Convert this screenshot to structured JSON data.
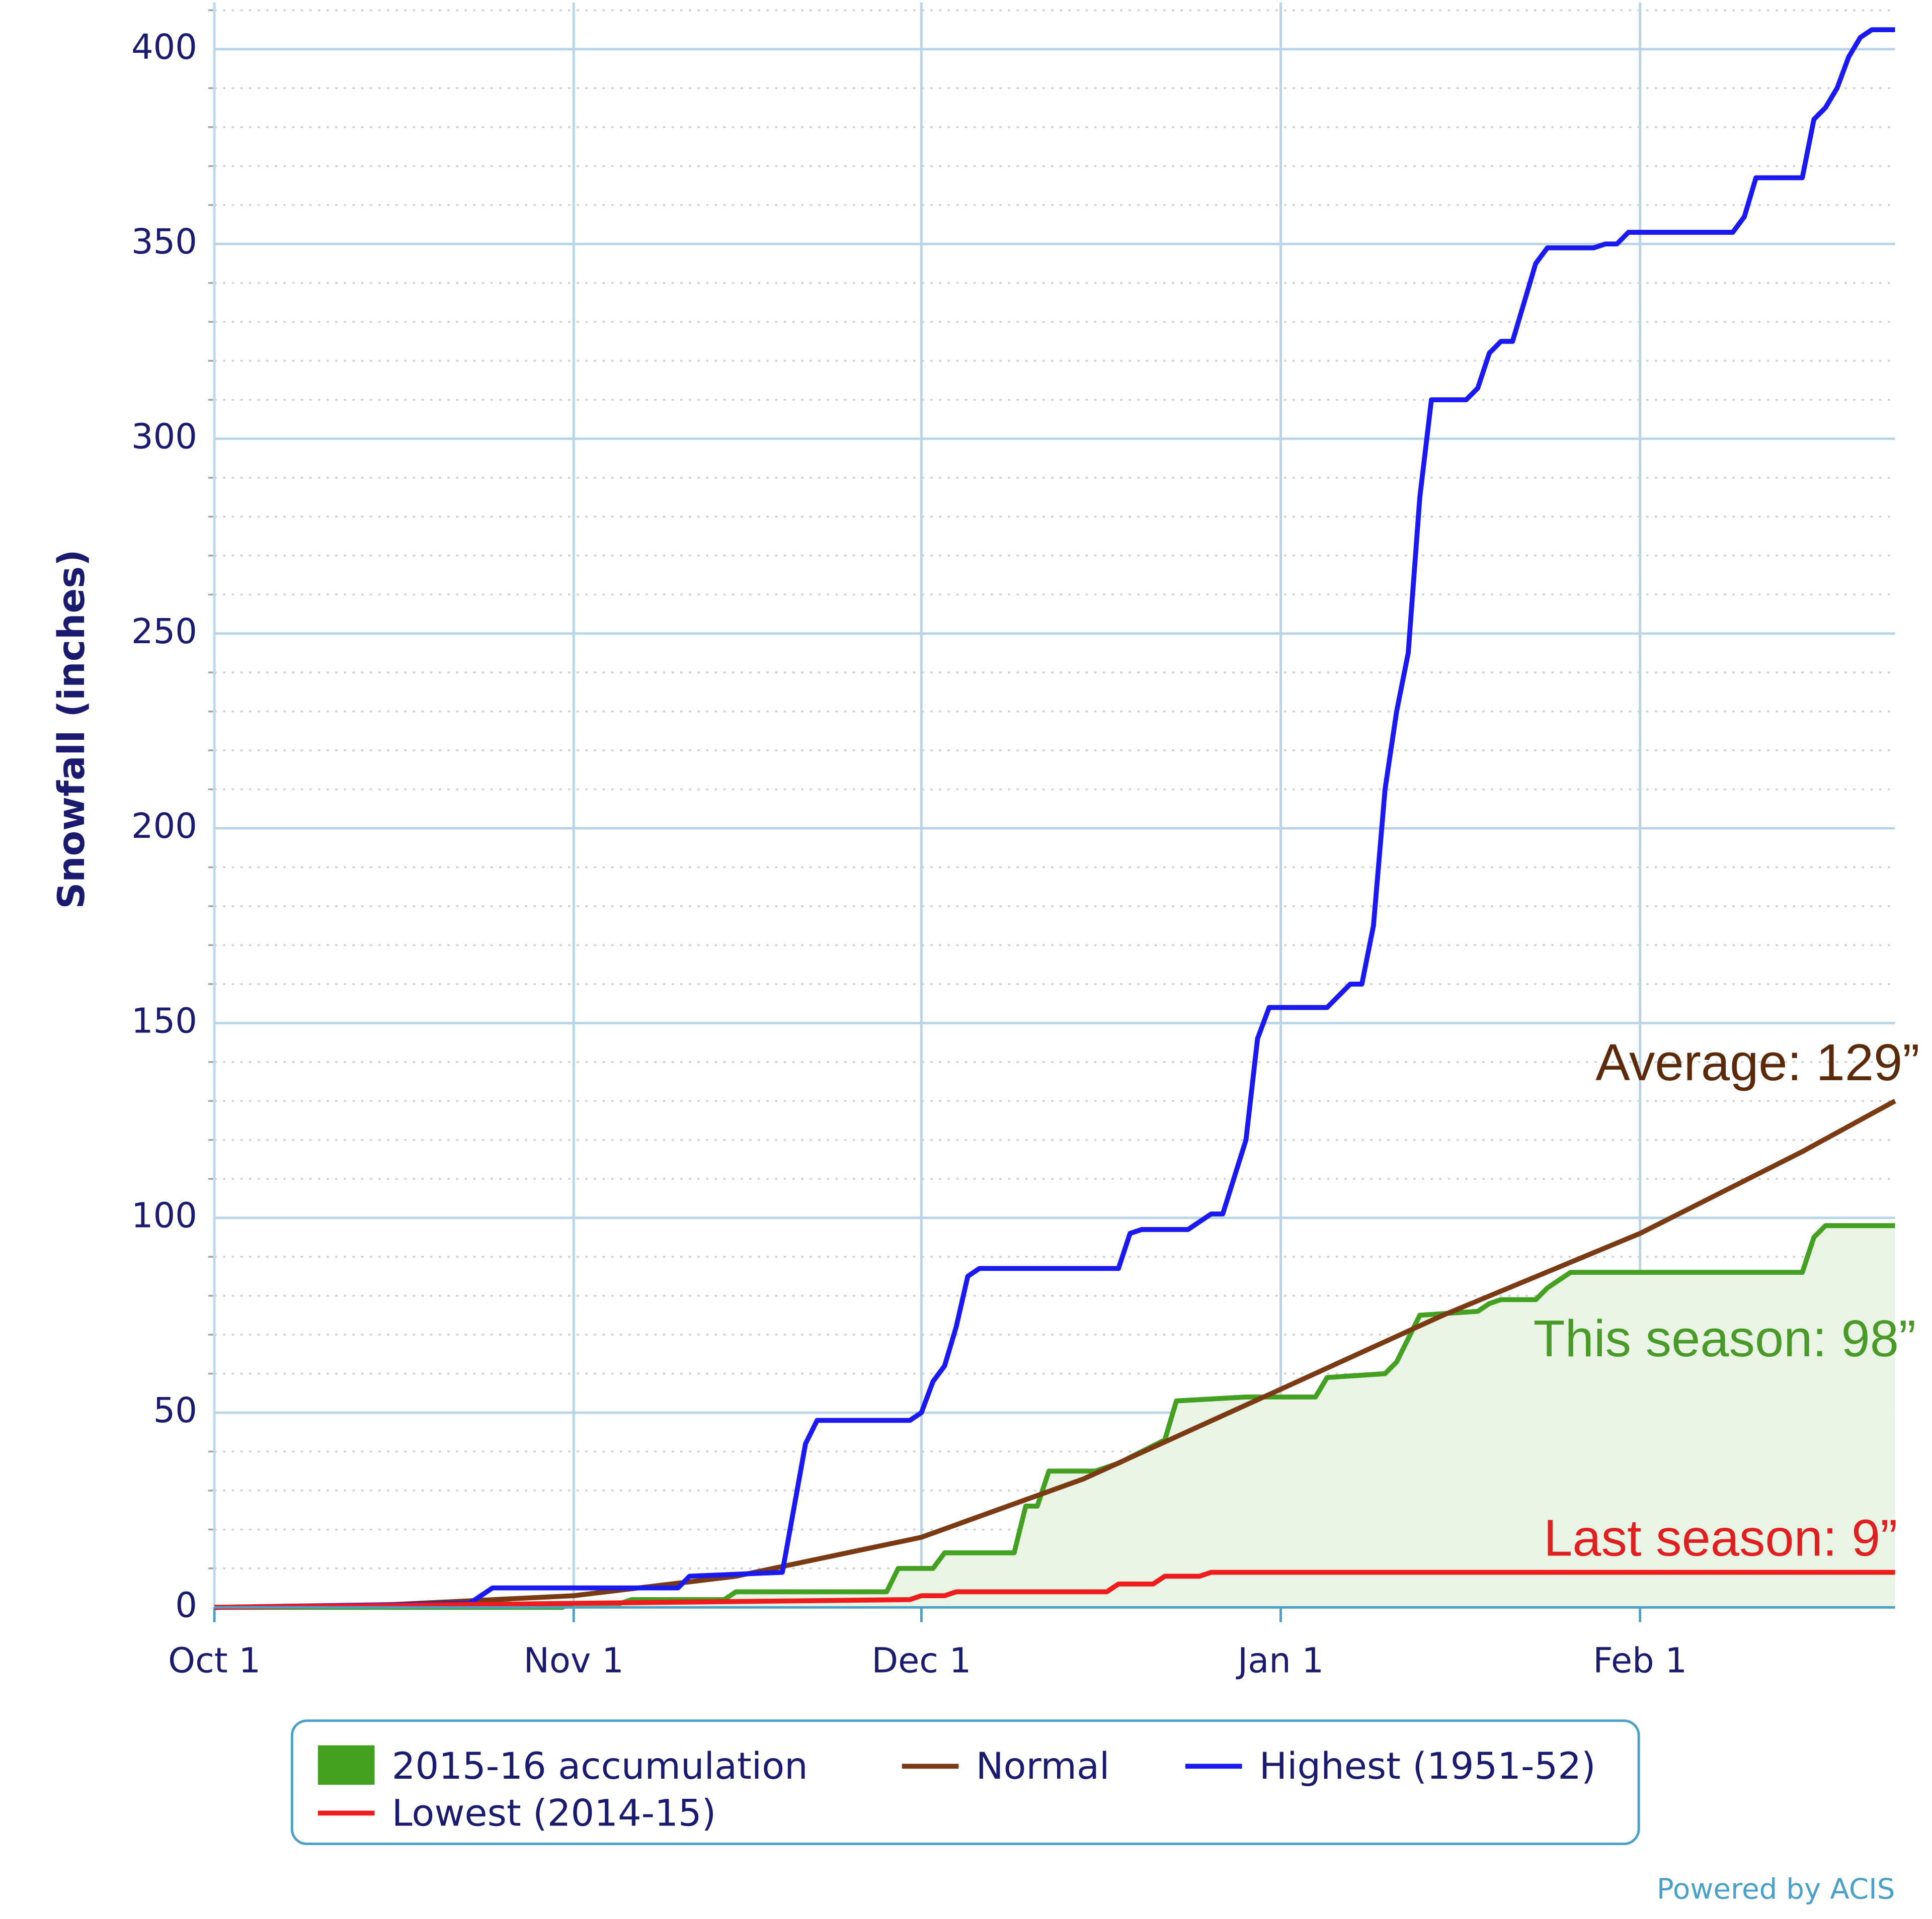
{
  "chart_data": {
    "type": "line",
    "y_label": "Snowfall (inches)",
    "ylim": [
      0,
      412
    ],
    "yticks": [
      0,
      50,
      100,
      150,
      200,
      250,
      300,
      350,
      400
    ],
    "minor_yticks": [
      10,
      20,
      30,
      40,
      60,
      70,
      80,
      90,
      110,
      120,
      130,
      140,
      160,
      170,
      180,
      190,
      210,
      220,
      230,
      240,
      260,
      270,
      280,
      290,
      310,
      320,
      330,
      340,
      360,
      370,
      380,
      390,
      410
    ],
    "xlim": [
      "10-01",
      "02-23"
    ],
    "xticks": [
      {
        "value": "10-01",
        "label": "Oct 1"
      },
      {
        "value": "11-01",
        "label": "Nov 1"
      },
      {
        "value": "12-01",
        "label": "Dec 1"
      },
      {
        "value": "01-01",
        "label": "Jan 1"
      },
      {
        "value": "02-01",
        "label": "Feb 1"
      }
    ],
    "grid": true,
    "series": [
      {
        "name": "2015-16 accumulation",
        "color": "#44a020",
        "fill": "#eaf4e4",
        "x": [
          "10-01",
          "10-31",
          "11-01",
          "11-05",
          "11-06",
          "11-14",
          "11-15",
          "11-28",
          "11-29",
          "12-02",
          "12-03",
          "12-09",
          "12-10",
          "12-11",
          "12-12",
          "12-16",
          "12-18",
          "12-20",
          "12-22",
          "12-23",
          "12-29",
          "01-04",
          "01-05",
          "01-10",
          "01-11",
          "01-13",
          "01-18",
          "01-19",
          "01-20",
          "01-23",
          "01-24",
          "01-26",
          "02-15",
          "02-16",
          "02-17",
          "02-23"
        ],
        "values": [
          0,
          0,
          1,
          1,
          2,
          2,
          4,
          4,
          10,
          10,
          14,
          14,
          26,
          26,
          35,
          35,
          37,
          40,
          43,
          53,
          54,
          54,
          59,
          60,
          63,
          75,
          76,
          78,
          79,
          79,
          82,
          86,
          86,
          95,
          98,
          98
        ]
      },
      {
        "name": "Normal",
        "color": "#7a3a14",
        "x": [
          "10-01",
          "10-15",
          "11-01",
          "11-15",
          "12-01",
          "12-15",
          "01-01",
          "01-15",
          "02-01",
          "02-15",
          "02-23"
        ],
        "values": [
          0,
          0.5,
          3,
          8,
          18,
          33,
          56,
          75,
          96,
          117,
          130
        ]
      },
      {
        "name": "Highest (1951-52)",
        "color": "#1a1af0",
        "x": [
          "10-01",
          "10-23",
          "10-25",
          "11-10",
          "11-11",
          "11-19",
          "11-21",
          "11-22",
          "11-30",
          "12-01",
          "12-02",
          "12-03",
          "12-04",
          "12-05",
          "12-06",
          "12-18",
          "12-19",
          "12-20",
          "12-24",
          "12-25",
          "12-26",
          "12-27",
          "12-29",
          "12-30",
          "12-31",
          "01-05",
          "01-06",
          "01-07",
          "01-08",
          "01-09",
          "01-10",
          "01-11",
          "01-12",
          "01-13",
          "01-14",
          "01-17",
          "01-18",
          "01-19",
          "01-20",
          "01-21",
          "01-22",
          "01-23",
          "01-24",
          "01-28",
          "01-29",
          "01-30",
          "01-31",
          "02-09",
          "02-10",
          "02-11",
          "02-15",
          "02-16",
          "02-17",
          "02-18",
          "02-19",
          "02-20",
          "02-21",
          "02-23"
        ],
        "values": [
          0,
          1,
          5,
          5,
          8,
          9,
          42,
          48,
          48,
          50,
          58,
          62,
          72,
          85,
          87,
          87,
          96,
          97,
          97,
          99,
          101,
          101,
          120,
          146,
          154,
          154,
          157,
          160,
          160,
          175,
          210,
          230,
          245,
          285,
          310,
          310,
          313,
          322,
          325,
          325,
          335,
          345,
          349,
          349,
          350,
          350,
          353,
          353,
          357,
          367,
          367,
          382,
          385,
          390,
          398,
          403,
          405,
          405
        ]
      },
      {
        "name": "Lowest (2014-15)",
        "color": "#ee1c1c",
        "x": [
          "10-01",
          "10-31",
          "11-30",
          "12-01",
          "12-03",
          "12-04",
          "12-17",
          "12-18",
          "12-21",
          "12-22",
          "12-25",
          "12-26",
          "02-23"
        ],
        "values": [
          0,
          1,
          2,
          3,
          3,
          4,
          4,
          6,
          6,
          8,
          8,
          9,
          9
        ]
      }
    ],
    "annotations": [
      {
        "text": "Average: 129”",
        "color": "#5a2a0a"
      },
      {
        "text": "This season: 98”",
        "color": "#4a9a2a"
      },
      {
        "text": "Last season: 9”",
        "color": "#e02020"
      }
    ],
    "credit": "Powered by ACIS"
  }
}
